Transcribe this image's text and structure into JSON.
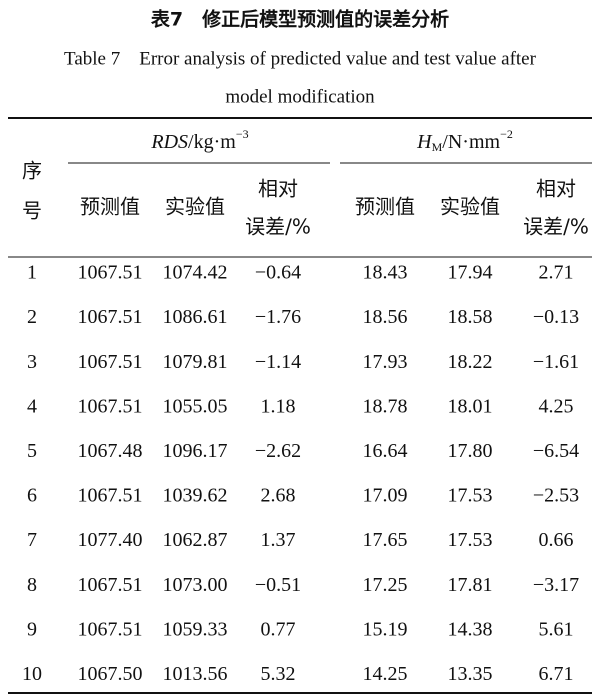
{
  "caption": {
    "cn": "表7　修正后模型预测值的误差分析",
    "en_line1": "Table 7　Error analysis of predicted value and test value after",
    "en_line2": "model modification"
  },
  "table": {
    "index_header": [
      "序",
      "号"
    ],
    "groups": [
      {
        "name": "RDS",
        "sub": "",
        "unit": "/kg·m",
        "exp": "−3"
      },
      {
        "name": "H",
        "sub": "M",
        "unit": "/N·mm",
        "exp": "−2"
      }
    ],
    "subheaders": [
      [
        "预测值"
      ],
      [
        "实验值"
      ],
      [
        "相对",
        "误差/%"
      ],
      [
        "预测值"
      ],
      [
        "实验值"
      ],
      [
        "相对",
        "误差/%"
      ]
    ],
    "rows": [
      [
        "1",
        "1067.51",
        "1074.42",
        "−0.64",
        "18.43",
        "17.94",
        "2.71"
      ],
      [
        "2",
        "1067.51",
        "1086.61",
        "−1.76",
        "18.56",
        "18.58",
        "−0.13"
      ],
      [
        "3",
        "1067.51",
        "1079.81",
        "−1.14",
        "17.93",
        "18.22",
        "−1.61"
      ],
      [
        "4",
        "1067.51",
        "1055.05",
        "1.18",
        "18.78",
        "18.01",
        "4.25"
      ],
      [
        "5",
        "1067.48",
        "1096.17",
        "−2.62",
        "16.64",
        "17.80",
        "−6.54"
      ],
      [
        "6",
        "1067.51",
        "1039.62",
        "2.68",
        "17.09",
        "17.53",
        "−2.53"
      ],
      [
        "7",
        "1077.40",
        "1062.87",
        "1.37",
        "17.65",
        "17.53",
        "0.66"
      ],
      [
        "8",
        "1067.51",
        "1073.00",
        "−0.51",
        "17.25",
        "17.81",
        "−3.17"
      ],
      [
        "9",
        "1067.51",
        "1059.33",
        "0.77",
        "15.19",
        "14.38",
        "5.61"
      ],
      [
        "10",
        "1067.50",
        "1013.56",
        "5.32",
        "14.25",
        "13.35",
        "6.71"
      ]
    ]
  }
}
